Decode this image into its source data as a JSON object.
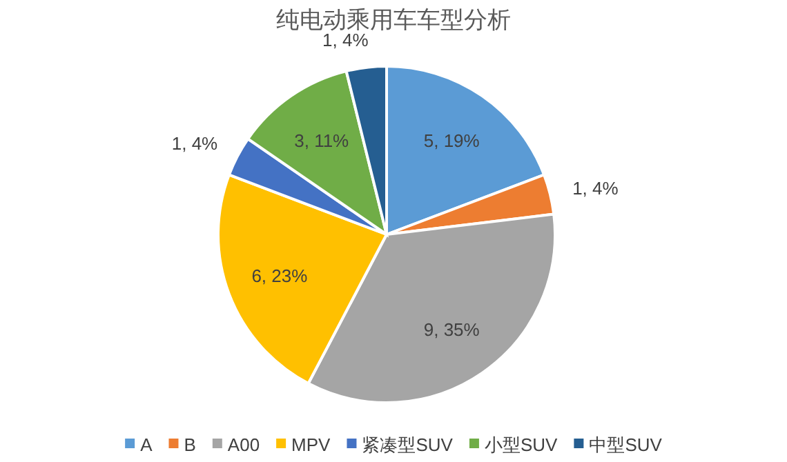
{
  "chart_data": {
    "type": "pie",
    "title": "纯电动乘用车车型分析",
    "categories": [
      "A",
      "B",
      "A00",
      "MPV",
      "紧凑型SUV",
      "小型SUV",
      "中型SUV"
    ],
    "values": [
      5,
      1,
      9,
      6,
      1,
      3,
      1
    ],
    "colors": [
      "#5b9bd5",
      "#ed7d31",
      "#a5a5a5",
      "#ffc000",
      "#4472c4",
      "#70ad47",
      "#255e91"
    ],
    "value_labels": [
      "5, 19%",
      "1, 4%",
      "9, 35%",
      "6, 23%",
      "1, 4%",
      "3, 11%",
      "1, 4%"
    ],
    "legend": "bottom"
  }
}
